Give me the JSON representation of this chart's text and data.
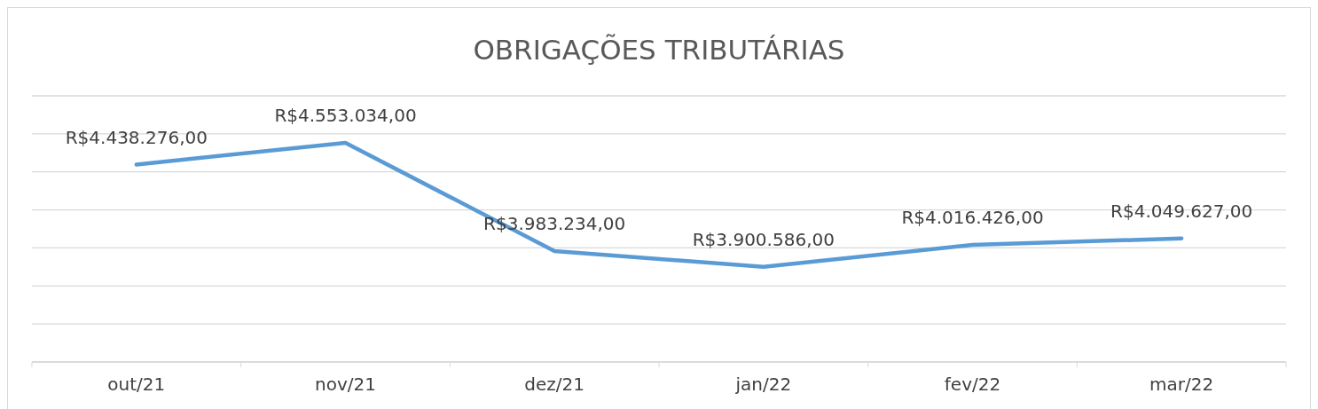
{
  "chart_data": {
    "type": "line",
    "title": "OBRIGAÇÕES TRIBUTÁRIAS",
    "categories": [
      "out/21",
      "nov/21",
      "dez/21",
      "jan/22",
      "fev/22",
      "mar/22"
    ],
    "series": [
      {
        "color": "#5b9bd5",
        "values": [
          4438276,
          4553034,
          3983234,
          3900586,
          4016426,
          4049627
        ],
        "value_labels": [
          "R$4.438.276,00",
          "R$4.553.034,00",
          "R$3.983.234,00",
          "R$3.900.586,00",
          "R$4.016.426,00",
          "R$4.049.627,00"
        ]
      }
    ],
    "ylim": [
      3400000,
      4800000
    ],
    "yticks": [
      {
        "value": 3400000,
        "label": null
      },
      {
        "value": 3600000,
        "label": null
      },
      {
        "value": 3800000,
        "label": null
      },
      {
        "value": 4000000,
        "label": null
      },
      {
        "value": 4200000,
        "label": null
      },
      {
        "value": 4400000,
        "label": null
      },
      {
        "value": 4600000,
        "label": null
      },
      {
        "value": 4800000,
        "label": null
      }
    ],
    "grid": "y",
    "tick_labels": "x",
    "marker": "none",
    "line_style": "solid"
  }
}
